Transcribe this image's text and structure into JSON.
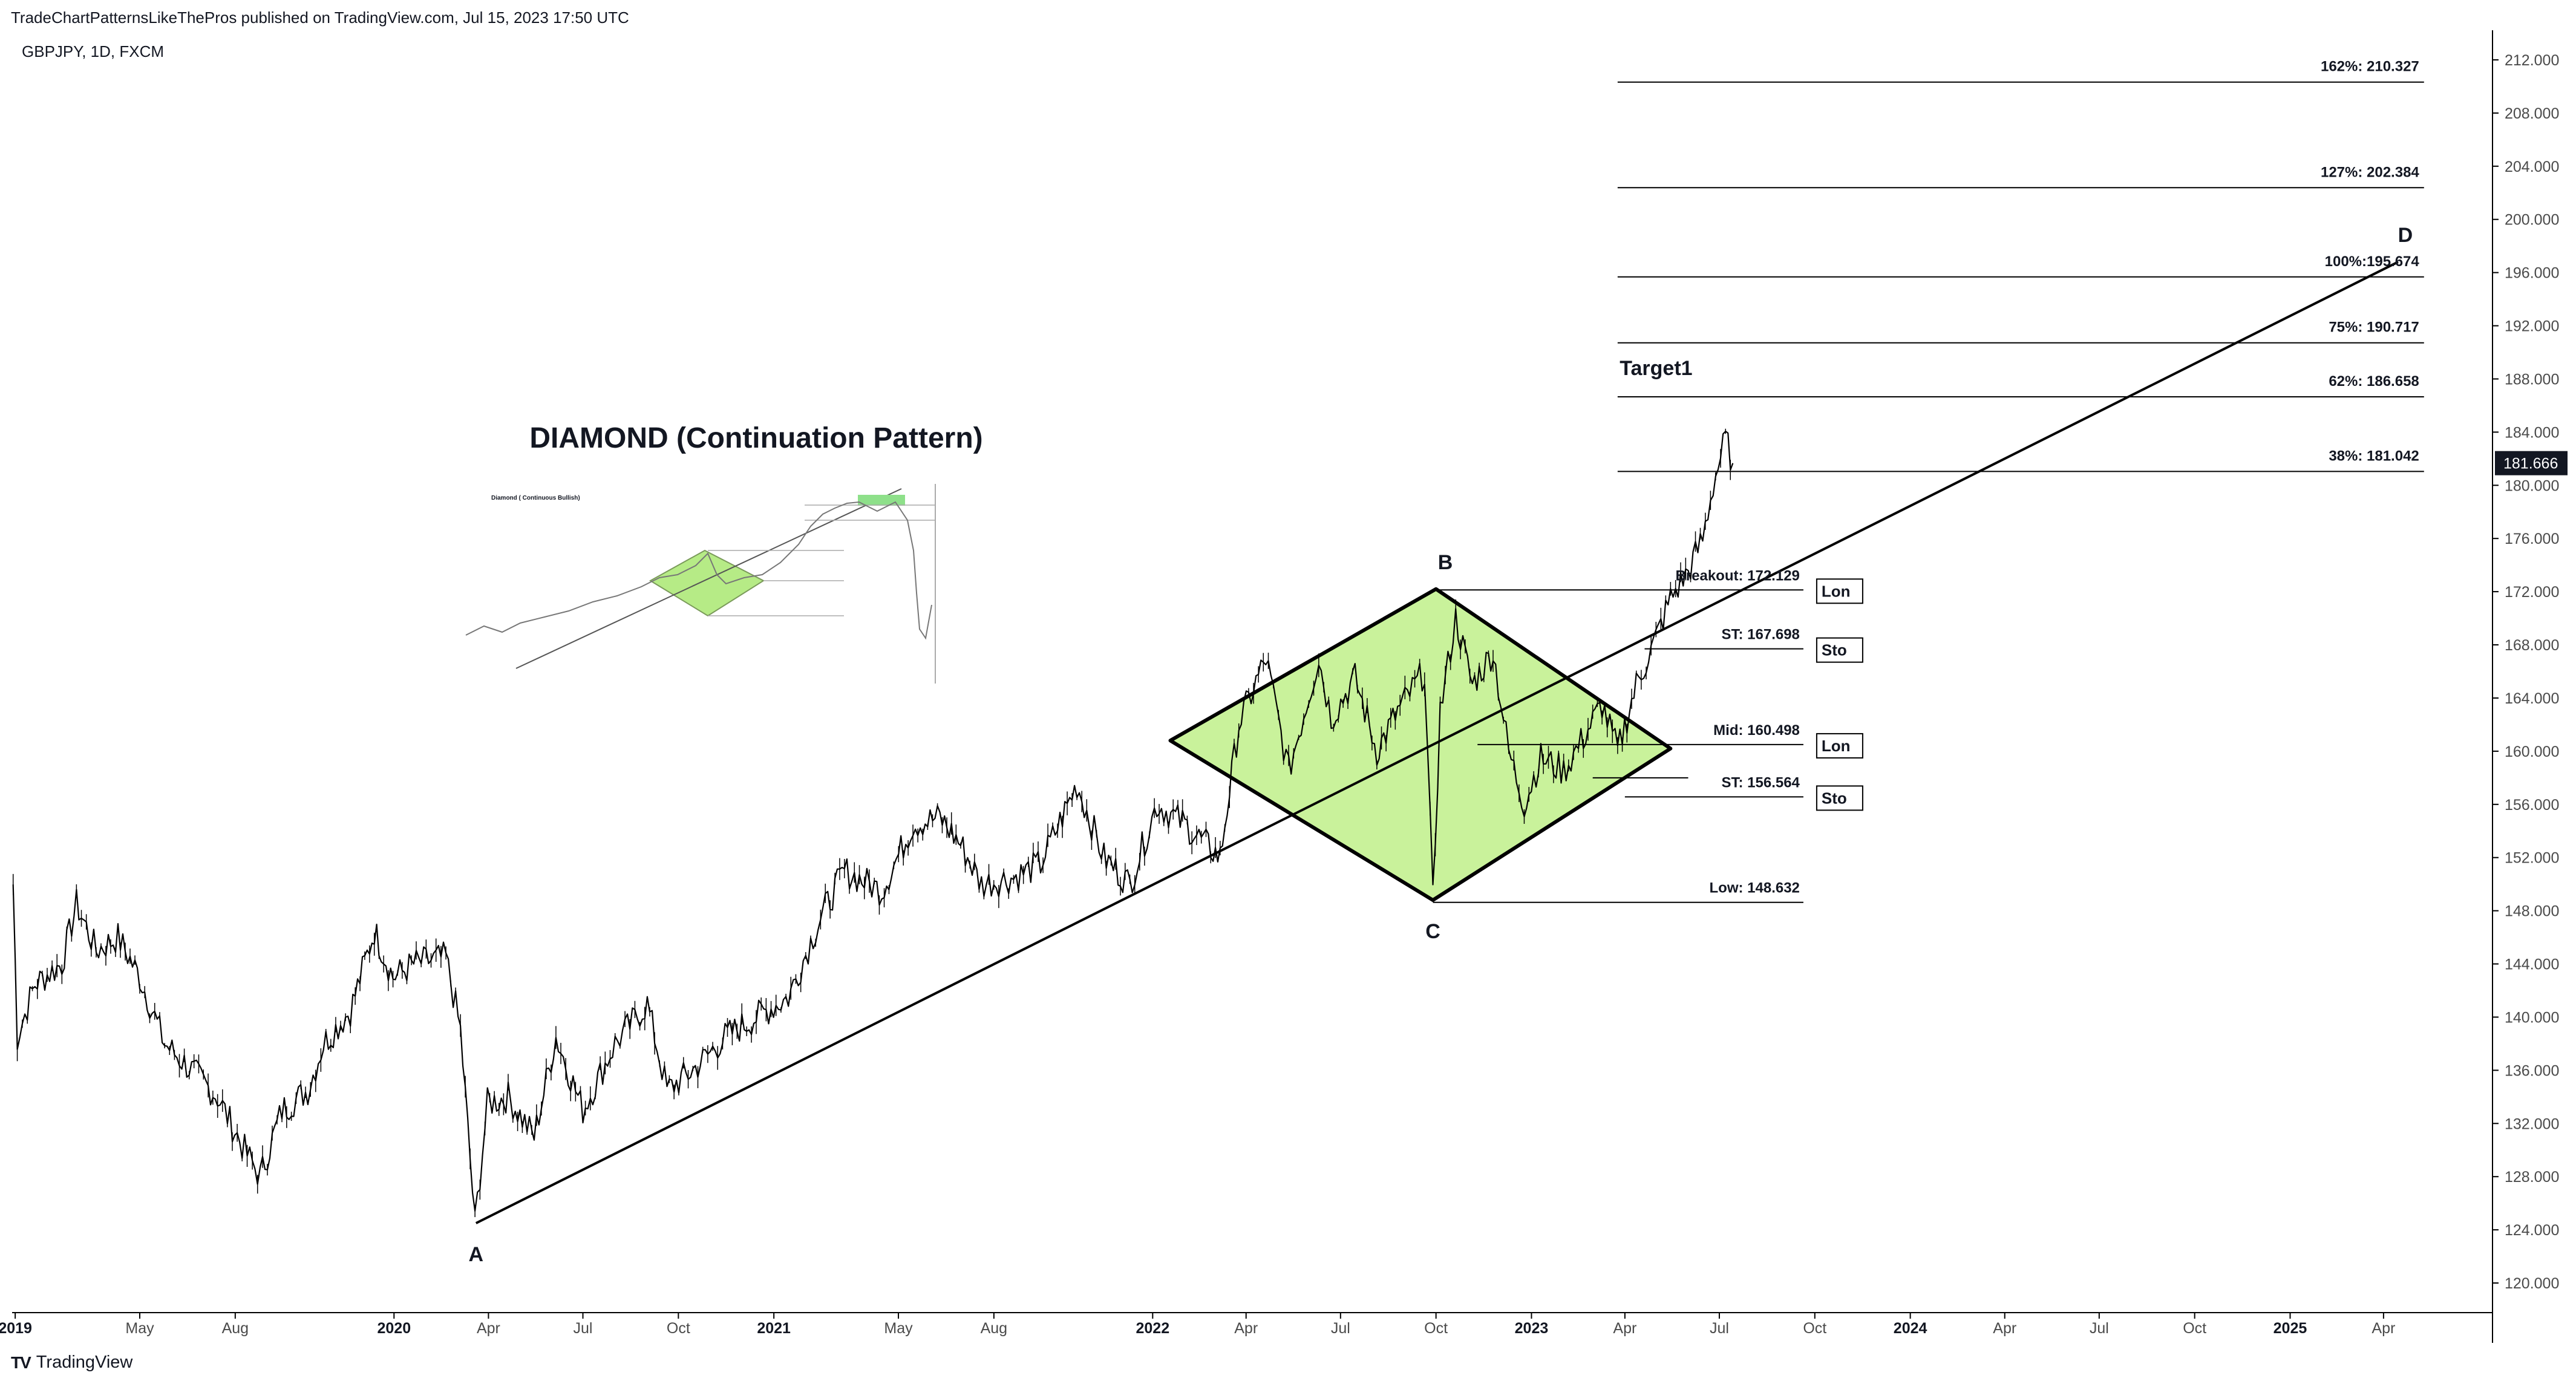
{
  "header": {
    "published": "TradeChartPatternsLikeThePros published on TradingView.com, Jul 15, 2023 17:50 UTC",
    "symbol": "GBPJPY, 1D, FXCM"
  },
  "footer": {
    "brand": "TradingView",
    "logo": "TV"
  },
  "colors": {
    "diamond_fill": "#c9f29b",
    "line": "#000000",
    "price_badge": "#131722",
    "text": "#131722",
    "axis_text": "#4a4a4a"
  },
  "inset": {
    "title": "Diamond ( Continuous Bullish)"
  },
  "chart_data": {
    "type": "line",
    "title": "DIAMOND (Continuation Pattern)",
    "xlabel": "",
    "ylabel": "",
    "ylim": [
      118,
      214
    ],
    "x_ticks": [
      {
        "label": "2019",
        "date": "2019-01-01",
        "bold": true
      },
      {
        "label": "May",
        "date": "2019-05-01"
      },
      {
        "label": "Aug",
        "date": "2019-08-01"
      },
      {
        "label": "2020",
        "date": "2020-01-01",
        "bold": true
      },
      {
        "label": "Apr",
        "date": "2020-04-01"
      },
      {
        "label": "Jul",
        "date": "2020-07-01"
      },
      {
        "label": "Oct",
        "date": "2020-10-01"
      },
      {
        "label": "2021",
        "date": "2021-01-01",
        "bold": true
      },
      {
        "label": "May",
        "date": "2021-05-01"
      },
      {
        "label": "Aug",
        "date": "2021-08-01"
      },
      {
        "label": "2022",
        "date": "2022-01-01",
        "bold": true
      },
      {
        "label": "Apr",
        "date": "2022-04-01"
      },
      {
        "label": "Jul",
        "date": "2022-07-01"
      },
      {
        "label": "Oct",
        "date": "2022-10-01"
      },
      {
        "label": "2023",
        "date": "2023-01-01",
        "bold": true
      },
      {
        "label": "Apr",
        "date": "2023-04-01"
      },
      {
        "label": "Jul",
        "date": "2023-07-01"
      },
      {
        "label": "Oct",
        "date": "2023-10-01"
      },
      {
        "label": "2024",
        "date": "2024-01-01",
        "bold": true
      },
      {
        "label": "Apr",
        "date": "2024-04-01"
      },
      {
        "label": "Jul",
        "date": "2024-07-01"
      },
      {
        "label": "Oct",
        "date": "2024-10-01"
      },
      {
        "label": "2025",
        "date": "2025-01-01",
        "bold": true
      },
      {
        "label": "Apr",
        "date": "2025-04-01"
      }
    ],
    "y_ticks": [
      "120.000",
      "124.000",
      "128.000",
      "132.000",
      "136.000",
      "140.000",
      "144.000",
      "148.000",
      "152.000",
      "156.000",
      "160.000",
      "164.000",
      "168.000",
      "172.000",
      "176.000",
      "180.000",
      "184.000",
      "188.000",
      "192.000",
      "196.000",
      "200.000",
      "204.000",
      "208.000",
      "212.000"
    ],
    "last_price": {
      "label": "181.666",
      "value": 181.666
    },
    "series": [
      {
        "type": "candlestick-approx",
        "points": [
          [
            "2018-12-30",
            150.0
          ],
          [
            "2019-01-03",
            138.5
          ],
          [
            "2019-01-20",
            142.5
          ],
          [
            "2019-02-15",
            144.0
          ],
          [
            "2019-03-01",
            148.5
          ],
          [
            "2019-03-20",
            145.0
          ],
          [
            "2019-04-10",
            146.0
          ],
          [
            "2019-05-01",
            143.0
          ],
          [
            "2019-05-25",
            138.0
          ],
          [
            "2019-06-20",
            136.0
          ],
          [
            "2019-07-15",
            134.0
          ],
          [
            "2019-08-10",
            130.0
          ],
          [
            "2019-08-25",
            128.0
          ],
          [
            "2019-09-15",
            133.0
          ],
          [
            "2019-10-10",
            134.5
          ],
          [
            "2019-10-25",
            138.0
          ],
          [
            "2019-11-20",
            140.5
          ],
          [
            "2019-12-13",
            146.5
          ],
          [
            "2019-12-31",
            143.0
          ],
          [
            "2020-01-20",
            144.0
          ],
          [
            "2020-02-20",
            144.5
          ],
          [
            "2020-03-05",
            139.0
          ],
          [
            "2020-03-19",
            124.5
          ],
          [
            "2020-03-31",
            133.5
          ],
          [
            "2020-04-20",
            134.0
          ],
          [
            "2020-05-15",
            131.0
          ],
          [
            "2020-06-05",
            138.5
          ],
          [
            "2020-07-01",
            133.0
          ],
          [
            "2020-08-01",
            138.0
          ],
          [
            "2020-09-01",
            141.0
          ],
          [
            "2020-09-20",
            134.5
          ],
          [
            "2020-10-15",
            136.0
          ],
          [
            "2020-11-15",
            138.5
          ],
          [
            "2020-12-15",
            140.0
          ],
          [
            "2021-01-15",
            141.5
          ],
          [
            "2021-02-15",
            147.5
          ],
          [
            "2021-03-10",
            151.0
          ],
          [
            "2021-04-15",
            149.5
          ],
          [
            "2021-05-15",
            154.5
          ],
          [
            "2021-06-10",
            155.0
          ],
          [
            "2021-06-30",
            153.0
          ],
          [
            "2021-07-20",
            150.0
          ],
          [
            "2021-08-20",
            150.5
          ],
          [
            "2021-09-15",
            151.5
          ],
          [
            "2021-10-20",
            157.5
          ],
          [
            "2021-11-15",
            152.0
          ],
          [
            "2021-12-10",
            150.0
          ],
          [
            "2022-01-05",
            156.0
          ],
          [
            "2022-02-01",
            154.5
          ],
          [
            "2022-03-07",
            152.0
          ],
          [
            "2022-03-25",
            162.0
          ],
          [
            "2022-04-20",
            167.0
          ],
          [
            "2022-05-12",
            158.5
          ],
          [
            "2022-06-10",
            167.0
          ],
          [
            "2022-06-22",
            162.5
          ],
          [
            "2022-07-15",
            165.5
          ],
          [
            "2022-08-05",
            160.0
          ],
          [
            "2022-08-25",
            163.0
          ],
          [
            "2022-09-20",
            166.0
          ],
          [
            "2022-09-28",
            148.8
          ],
          [
            "2022-10-05",
            163.0
          ],
          [
            "2022-10-20",
            170.0
          ],
          [
            "2022-11-05",
            165.0
          ],
          [
            "2022-11-25",
            167.5
          ],
          [
            "2022-12-10",
            160.0
          ],
          [
            "2022-12-25",
            156.0
          ],
          [
            "2023-01-10",
            159.5
          ],
          [
            "2023-02-01",
            158.5
          ],
          [
            "2023-02-20",
            161.0
          ],
          [
            "2023-03-10",
            163.5
          ],
          [
            "2023-03-25",
            160.0
          ],
          [
            "2023-04-12",
            165.0
          ],
          [
            "2023-05-01",
            168.5
          ],
          [
            "2023-05-15",
            171.5
          ],
          [
            "2023-06-01",
            173.5
          ],
          [
            "2023-06-15",
            176.0
          ],
          [
            "2023-06-25",
            180.0
          ],
          [
            "2023-07-07",
            183.5
          ],
          [
            "2023-07-14",
            181.666
          ]
        ]
      }
    ],
    "trendline": {
      "from": {
        "label": "A",
        "date": "2020-03-20",
        "value": 124.5
      },
      "to": {
        "label": "D",
        "date": "2025-04-15",
        "value": 196.8
      }
    },
    "diamond": {
      "left": {
        "date": "2022-01-18",
        "value": 160.8
      },
      "top": {
        "label": "B",
        "date": "2022-10-01",
        "value": 172.2
      },
      "bottom": {
        "label": "C",
        "date": "2022-09-28",
        "value": 148.8
      },
      "right": {
        "date": "2023-05-15",
        "value": 160.2
      }
    },
    "point_labels": [
      {
        "label": "A",
        "date": "2020-03-20",
        "value": 123.0
      },
      {
        "label": "B",
        "date": "2022-10-10",
        "value": 173.7
      },
      {
        "label": "C",
        "date": "2022-09-28",
        "value": 147.3
      },
      {
        "label": "D",
        "date": "2025-04-22",
        "value": 198.3
      }
    ],
    "levels": [
      {
        "label": "Breakout: 172.129",
        "value": 172.129,
        "from": "2022-10-01",
        "to": "2023-09-20",
        "tag": "Lon"
      },
      {
        "label": "ST: 167.698",
        "value": 167.698,
        "from": "2023-04-20",
        "to": "2023-09-20",
        "tag": "Sto"
      },
      {
        "label": "Mid: 160.498",
        "value": 160.498,
        "from": "2022-11-10",
        "to": "2023-09-20",
        "tag": "Lon"
      },
      {
        "label": "ST: 156.564",
        "value": 156.564,
        "from": "2023-04-01",
        "to": "2023-09-20",
        "tag": "Sto"
      },
      {
        "label": "Low: 148.632",
        "value": 148.632,
        "from": "2022-09-28",
        "to": "2023-09-20"
      }
    ],
    "short_line": {
      "value": 158.0,
      "from": "2023-03-01",
      "to": "2023-06-01"
    },
    "fib_levels": [
      {
        "label": "162%: 210.327",
        "value": 210.327
      },
      {
        "label": "127%: 202.384",
        "value": 202.384
      },
      {
        "label": "100%:195.674",
        "value": 195.674
      },
      {
        "label": "75%: 190.717",
        "value": 190.717
      },
      {
        "label": "62%: 186.658",
        "value": 186.658
      },
      {
        "label": "38%: 181.042",
        "value": 181.042
      }
    ],
    "fib_range": {
      "from": "2023-03-25",
      "to": "2025-05-10"
    },
    "target_label": {
      "label": "Target1",
      "date": "2023-03-27",
      "value": 188.3
    },
    "grid": false,
    "legend": "none"
  }
}
